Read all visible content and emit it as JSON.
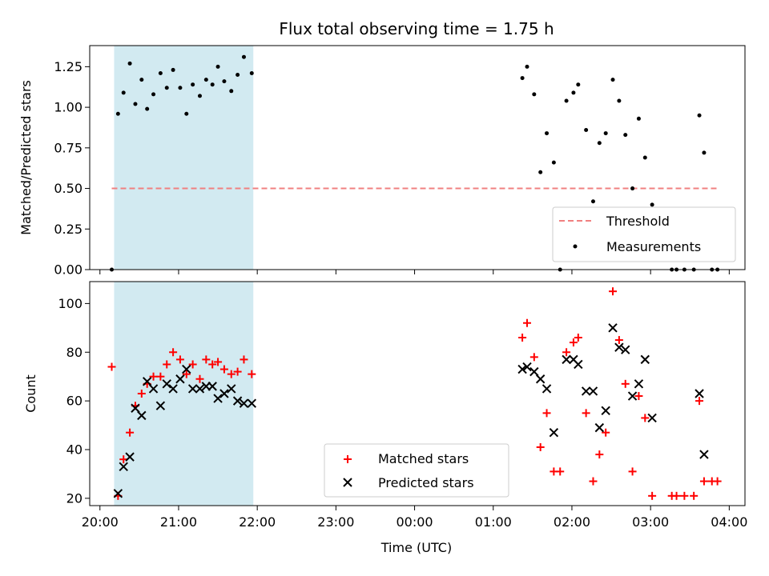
{
  "chart_data": {
    "type": "scatter",
    "title": "Flux total observing time = 1.75 h",
    "xlabel": "Time (UTC)",
    "x_ticks": [
      "20:00",
      "21:00",
      "22:00",
      "23:00",
      "00:00",
      "01:00",
      "02:00",
      "03:00",
      "04:00"
    ],
    "x_range_hours": [
      19.87,
      28.2
    ],
    "shaded_interval_hours": [
      20.18,
      21.95
    ],
    "shade_color": "#add8e6",
    "top_panel": {
      "ylabel": "Matched/Predicted stars",
      "ylim": [
        0,
        1.38
      ],
      "y_ticks": [
        "0.00",
        "0.25",
        "0.50",
        "0.75",
        "1.00",
        "1.25"
      ],
      "threshold": {
        "name": "Threshold",
        "value": 0.5,
        "x_start": 20.15,
        "x_end": 27.85,
        "color": "#f08080"
      },
      "measurements": {
        "name": "Measurements",
        "color": "#000000",
        "points": [
          [
            20.15,
            0.0
          ],
          [
            20.23,
            0.96
          ],
          [
            20.3,
            1.09
          ],
          [
            20.38,
            1.27
          ],
          [
            20.45,
            1.02
          ],
          [
            20.53,
            1.17
          ],
          [
            20.6,
            0.99
          ],
          [
            20.68,
            1.08
          ],
          [
            20.77,
            1.21
          ],
          [
            20.85,
            1.12
          ],
          [
            20.93,
            1.23
          ],
          [
            21.02,
            1.12
          ],
          [
            21.1,
            0.96
          ],
          [
            21.18,
            1.14
          ],
          [
            21.27,
            1.07
          ],
          [
            21.35,
            1.17
          ],
          [
            21.43,
            1.14
          ],
          [
            21.5,
            1.25
          ],
          [
            21.58,
            1.16
          ],
          [
            21.67,
            1.1
          ],
          [
            21.75,
            1.2
          ],
          [
            21.83,
            1.31
          ],
          [
            21.93,
            1.21
          ],
          [
            25.37,
            1.18
          ],
          [
            25.43,
            1.25
          ],
          [
            25.52,
            1.08
          ],
          [
            25.6,
            0.6
          ],
          [
            25.68,
            0.84
          ],
          [
            25.77,
            0.66
          ],
          [
            25.85,
            0.0
          ],
          [
            25.93,
            1.04
          ],
          [
            26.02,
            1.09
          ],
          [
            26.08,
            1.14
          ],
          [
            26.18,
            0.86
          ],
          [
            26.27,
            0.42
          ],
          [
            26.35,
            0.78
          ],
          [
            26.43,
            0.84
          ],
          [
            26.52,
            1.17
          ],
          [
            26.6,
            1.04
          ],
          [
            26.68,
            0.83
          ],
          [
            26.77,
            0.5
          ],
          [
            26.85,
            0.93
          ],
          [
            26.93,
            0.69
          ],
          [
            27.02,
            0.4
          ],
          [
            27.27,
            0.0
          ],
          [
            27.33,
            0.0
          ],
          [
            27.43,
            0.0
          ],
          [
            27.55,
            0.0
          ],
          [
            27.62,
            0.95
          ],
          [
            27.68,
            0.72
          ],
          [
            27.78,
            0.0
          ],
          [
            27.85,
            0.0
          ]
        ]
      },
      "legend_position": "lower-right"
    },
    "bottom_panel": {
      "ylabel": "Count",
      "ylim": [
        17,
        109
      ],
      "y_ticks": [
        "20",
        "40",
        "60",
        "80",
        "100"
      ],
      "series": [
        {
          "name": "Matched stars",
          "marker": "+",
          "color": "#ff0000",
          "points": [
            [
              20.15,
              74
            ],
            [
              20.23,
              21
            ],
            [
              20.3,
              36
            ],
            [
              20.38,
              47
            ],
            [
              20.45,
              58
            ],
            [
              20.53,
              63
            ],
            [
              20.6,
              67
            ],
            [
              20.68,
              70
            ],
            [
              20.77,
              70
            ],
            [
              20.85,
              75
            ],
            [
              20.93,
              80
            ],
            [
              21.02,
              77
            ],
            [
              21.1,
              71
            ],
            [
              21.18,
              75
            ],
            [
              21.27,
              69
            ],
            [
              21.35,
              77
            ],
            [
              21.43,
              75
            ],
            [
              21.5,
              76
            ],
            [
              21.58,
              73
            ],
            [
              21.67,
              71
            ],
            [
              21.75,
              72
            ],
            [
              21.83,
              77
            ],
            [
              21.93,
              71
            ],
            [
              25.37,
              86
            ],
            [
              25.43,
              92
            ],
            [
              25.52,
              78
            ],
            [
              25.6,
              41
            ],
            [
              25.68,
              55
            ],
            [
              25.77,
              31
            ],
            [
              25.85,
              31
            ],
            [
              25.93,
              80
            ],
            [
              26.02,
              84
            ],
            [
              26.08,
              86
            ],
            [
              26.18,
              55
            ],
            [
              26.27,
              27
            ],
            [
              26.35,
              38
            ],
            [
              26.43,
              47
            ],
            [
              26.52,
              105
            ],
            [
              26.6,
              85
            ],
            [
              26.68,
              67
            ],
            [
              26.77,
              31
            ],
            [
              26.85,
              62
            ],
            [
              26.93,
              53
            ],
            [
              27.02,
              21
            ],
            [
              27.27,
              21
            ],
            [
              27.33,
              21
            ],
            [
              27.43,
              21
            ],
            [
              27.55,
              21
            ],
            [
              27.62,
              60
            ],
            [
              27.68,
              27
            ],
            [
              27.78,
              27
            ],
            [
              27.85,
              27
            ]
          ]
        },
        {
          "name": "Predicted stars",
          "marker": "x",
          "color": "#000000",
          "points": [
            [
              20.23,
              22
            ],
            [
              20.3,
              33
            ],
            [
              20.38,
              37
            ],
            [
              20.45,
              57
            ],
            [
              20.53,
              54
            ],
            [
              20.6,
              68
            ],
            [
              20.68,
              65
            ],
            [
              20.77,
              58
            ],
            [
              20.85,
              67
            ],
            [
              20.93,
              65
            ],
            [
              21.02,
              69
            ],
            [
              21.1,
              73
            ],
            [
              21.18,
              65
            ],
            [
              21.27,
              65
            ],
            [
              21.35,
              66
            ],
            [
              21.43,
              66
            ],
            [
              21.5,
              61
            ],
            [
              21.58,
              63
            ],
            [
              21.67,
              65
            ],
            [
              21.75,
              60
            ],
            [
              21.83,
              59
            ],
            [
              21.93,
              59
            ],
            [
              25.37,
              73
            ],
            [
              25.43,
              74
            ],
            [
              25.52,
              72
            ],
            [
              25.6,
              69
            ],
            [
              25.68,
              65
            ],
            [
              25.77,
              47
            ],
            [
              25.93,
              77
            ],
            [
              26.02,
              77
            ],
            [
              26.08,
              75
            ],
            [
              26.18,
              64
            ],
            [
              26.27,
              64
            ],
            [
              26.35,
              49
            ],
            [
              26.43,
              56
            ],
            [
              26.52,
              90
            ],
            [
              26.6,
              82
            ],
            [
              26.68,
              81
            ],
            [
              26.77,
              62
            ],
            [
              26.85,
              67
            ],
            [
              26.93,
              77
            ],
            [
              27.02,
              53
            ],
            [
              27.62,
              63
            ],
            [
              27.68,
              38
            ]
          ]
        }
      ],
      "legend_position": "lower-center"
    }
  }
}
